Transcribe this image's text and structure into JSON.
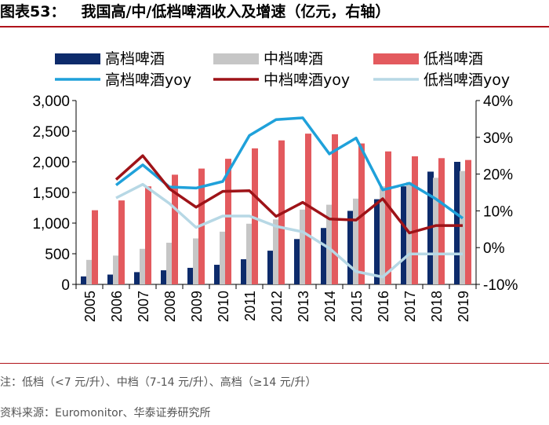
{
  "header": {
    "figure_label": "图表53：",
    "title": "我国高/中/低档啤酒收入及增速（亿元，右轴）"
  },
  "footer": {
    "note": "注：低档（<7 元/升）、中档（7-14 元/升）、高档（≥14 元/升）",
    "source": "资料来源：Euromonitor、华泰证券研究所"
  },
  "colors": {
    "high": "#0d2b6b",
    "mid": "#c6c6c6",
    "low": "#e35a5e",
    "high_yoy": "#1fa1da",
    "mid_yoy": "#9e1318",
    "low_yoy": "#b7d8e5"
  },
  "chart_data": {
    "type": "bar",
    "title": "我国高/中/低档啤酒收入及增速（亿元，右轴）",
    "categories": [
      "2005",
      "2006",
      "2007",
      "2008",
      "2009",
      "2010",
      "2011",
      "2012",
      "2013",
      "2014",
      "2015",
      "2016",
      "2017",
      "2018",
      "2019"
    ],
    "y_left": {
      "min": 0,
      "max": 3000,
      "ticks": [
        0,
        500,
        1000,
        1500,
        2000,
        2500,
        3000
      ],
      "tick_labels": [
        "0",
        "500",
        "1,000",
        "1,500",
        "2,000",
        "2,500",
        "3,000"
      ]
    },
    "y_right": {
      "min": -10,
      "max": 40,
      "ticks": [
        -10,
        0,
        10,
        20,
        30,
        40
      ],
      "tick_labels": [
        "-10%",
        "0%",
        "10%",
        "20%",
        "30%",
        "40%"
      ]
    },
    "bar_series": [
      {
        "name": "高档啤酒",
        "values": [
          130,
          160,
          200,
          230,
          270,
          320,
          410,
          550,
          740,
          920,
          1200,
          1390,
          1600,
          1840,
          2000
        ]
      },
      {
        "name": "中档啤酒",
        "values": [
          400,
          470,
          580,
          680,
          750,
          860,
          990,
          1060,
          1220,
          1300,
          1400,
          1600,
          1670,
          1740,
          1850
        ]
      },
      {
        "name": "低档啤酒",
        "values": [
          1210,
          1370,
          1600,
          1790,
          1890,
          2050,
          2220,
          2350,
          2460,
          2450,
          2300,
          2170,
          2090,
          2060,
          2030
        ]
      }
    ],
    "line_series": [
      {
        "name": "高档啤酒yoy",
        "values": [
          null,
          17.0,
          22.5,
          16.5,
          16.2,
          18.0,
          30.5,
          34.8,
          35.3,
          25.5,
          29.8,
          15.7,
          17.5,
          13.2,
          8.0
        ]
      },
      {
        "name": "中档啤酒yoy",
        "values": [
          null,
          18.5,
          25.0,
          16.0,
          11.0,
          15.3,
          15.5,
          8.5,
          12.3,
          7.8,
          7.5,
          13.3,
          4.0,
          6.0,
          6.0
        ]
      },
      {
        "name": "低档啤酒yoy",
        "values": [
          null,
          13.5,
          17.2,
          12.0,
          5.5,
          8.6,
          8.6,
          5.8,
          4.3,
          -0.2,
          -6.5,
          -8.0,
          -1.7,
          -1.7,
          -1.7
        ]
      }
    ],
    "legend": {
      "placement": "top",
      "row1": [
        "高档啤酒",
        "中档啤酒",
        "低档啤酒"
      ],
      "row2": [
        "高档啤酒yoy",
        "中档啤酒yoy",
        "低档啤酒yoy"
      ]
    },
    "grid": false
  }
}
